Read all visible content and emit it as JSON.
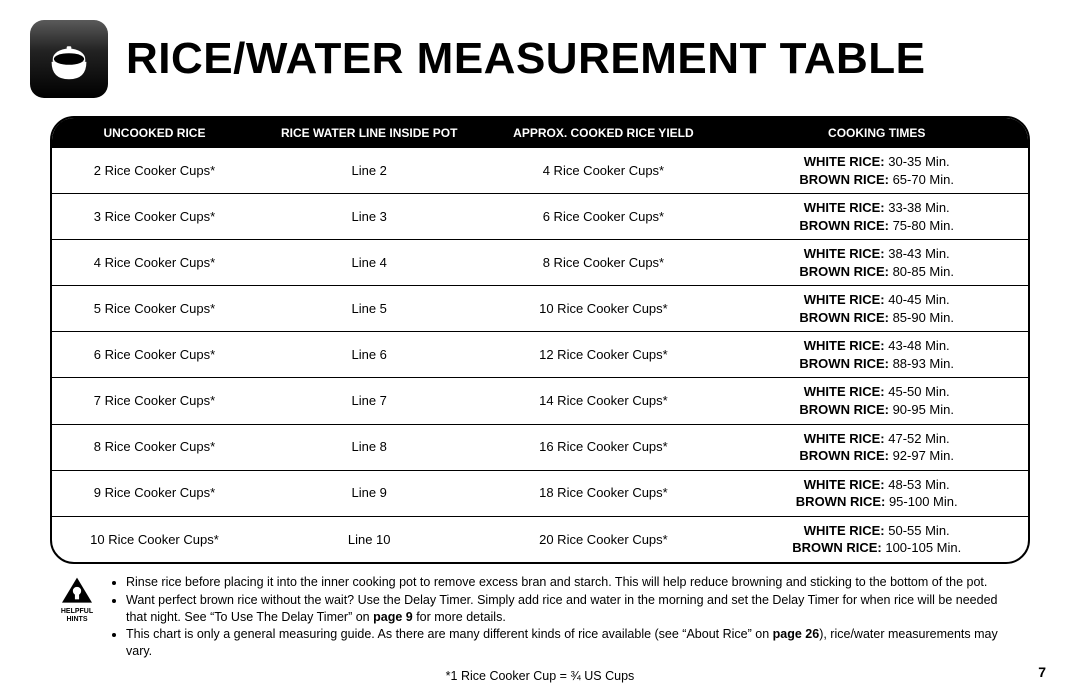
{
  "title": "RICE/WATER MEASUREMENT TABLE",
  "columns": [
    "Uncooked Rice",
    "Rice Water Line Inside Pot",
    "Approx. Cooked Rice Yield",
    "Cooking Times"
  ],
  "cooking_time_labels": {
    "white": "WHITE RICE:",
    "brown": "BROWN RICE:"
  },
  "rows": [
    {
      "uncooked": "2 Rice Cooker Cups*",
      "line": "Line 2",
      "yield": "4 Rice Cooker Cups*",
      "white": "30-35 Min.",
      "brown": "65-70 Min."
    },
    {
      "uncooked": "3 Rice Cooker Cups*",
      "line": "Line 3",
      "yield": "6 Rice Cooker Cups*",
      "white": "33-38 Min.",
      "brown": "75-80 Min."
    },
    {
      "uncooked": "4 Rice Cooker Cups*",
      "line": "Line 4",
      "yield": "8 Rice Cooker Cups*",
      "white": "38-43 Min.",
      "brown": "80-85 Min."
    },
    {
      "uncooked": "5 Rice Cooker Cups*",
      "line": "Line 5",
      "yield": "10 Rice Cooker Cups*",
      "white": "40-45 Min.",
      "brown": "85-90 Min."
    },
    {
      "uncooked": "6 Rice Cooker Cups*",
      "line": "Line 6",
      "yield": "12 Rice Cooker Cups*",
      "white": "43-48 Min.",
      "brown": "88-93 Min."
    },
    {
      "uncooked": "7 Rice Cooker Cups*",
      "line": "Line 7",
      "yield": "14 Rice Cooker Cups*",
      "white": "45-50 Min.",
      "brown": "90-95 Min."
    },
    {
      "uncooked": "8 Rice Cooker Cups*",
      "line": "Line 8",
      "yield": "16 Rice Cooker Cups*",
      "white": "47-52 Min.",
      "brown": "92-97 Min."
    },
    {
      "uncooked": "9 Rice Cooker Cups*",
      "line": "Line 9",
      "yield": "18 Rice Cooker Cups*",
      "white": "48-53 Min.",
      "brown": "95-100 Min."
    },
    {
      "uncooked": "10 Rice Cooker Cups*",
      "line": "Line 10",
      "yield": "20 Rice Cooker Cups*",
      "white": "50-55 Min.",
      "brown": "100-105 Min."
    }
  ],
  "hints_label_line1": "HELPFUL",
  "hints_label_line2": "HINTS",
  "hints": [
    {
      "pre": "Rinse rice before placing it into the inner cooking pot to remove excess bran and starch. This will help reduce browning and sticking to the bottom of the pot."
    },
    {
      "pre": "Want perfect brown rice without the wait? Use the Delay Timer. Simply add rice and water in the morning and set the Delay Timer for when rice will be needed that night. See “To Use The Delay Timer” on ",
      "bold": "page 9",
      "post": " for more details."
    },
    {
      "pre": "This chart is only a general measuring guide. As there are many different kinds of rice available (see “About Rice” on ",
      "bold": "page 26",
      "post": "), rice/water measurements may vary."
    }
  ],
  "footnote": "*1 Rice Cooker Cup = ¾ US Cups",
  "page_number": "7"
}
